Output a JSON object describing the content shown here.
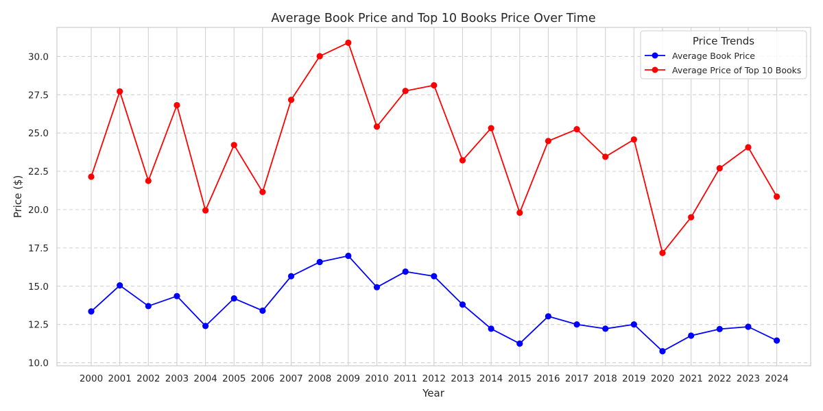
{
  "chart_data": {
    "type": "line",
    "title": "Average Book Price and Top 10 Books Price Over Time",
    "xlabel": "Year",
    "ylabel": "Price ($)",
    "x": [
      "2000",
      "2001",
      "2002",
      "2003",
      "2004",
      "2005",
      "2006",
      "2007",
      "2008",
      "2009",
      "2010",
      "2011",
      "2012",
      "2013",
      "2014",
      "2015",
      "2016",
      "2017",
      "2018",
      "2019",
      "2020",
      "2021",
      "2022",
      "2023",
      "2024"
    ],
    "ylim": [
      9.8,
      31.9
    ],
    "yticks": [
      "10.0",
      "12.5",
      "15.0",
      "17.5",
      "20.0",
      "22.5",
      "25.0",
      "27.5",
      "30.0"
    ],
    "grid": {
      "x": "solid",
      "y": "dashed"
    },
    "legend": {
      "title": "Price Trends",
      "placement": "top-right"
    },
    "series": [
      {
        "name": "Average Book Price",
        "color": "#0000ff",
        "values": [
          13.35,
          15.05,
          13.7,
          14.35,
          12.4,
          14.2,
          13.4,
          15.65,
          16.58,
          16.98,
          14.93,
          15.95,
          15.65,
          13.8,
          12.22,
          11.25,
          13.03,
          12.5,
          12.22,
          12.5,
          10.75,
          11.77,
          12.2,
          12.35,
          11.45
        ]
      },
      {
        "name": "Average Price of Top 10 Books",
        "color": "#ff0000",
        "values": [
          22.15,
          27.72,
          21.88,
          26.82,
          19.95,
          24.22,
          21.15,
          27.17,
          30.02,
          30.9,
          25.42,
          27.75,
          28.12,
          23.22,
          25.32,
          19.8,
          24.48,
          25.25,
          23.45,
          24.58,
          17.17,
          19.5,
          22.7,
          24.07,
          20.85
        ]
      }
    ]
  }
}
